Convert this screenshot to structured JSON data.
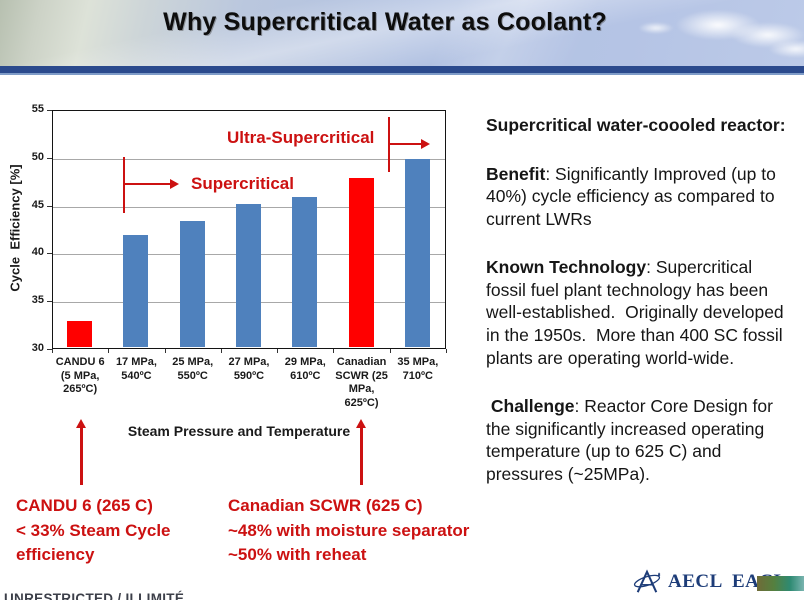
{
  "slide": {
    "title": "Why Supercritical Water as Coolant?"
  },
  "chart_data": {
    "type": "bar",
    "title": "",
    "xlabel": "Steam Pressure and Temperature",
    "ylabel": "Cycle  Efficiency [%]",
    "ylim": [
      30,
      55
    ],
    "yticks": [
      30,
      35,
      40,
      45,
      50,
      55
    ],
    "grid": "horizontal",
    "categories": [
      "CANDU 6\n(5 MPa,\n265ºC)",
      "17 MPa,\n540ºC",
      "25 MPa,\n550ºC",
      "27 MPa,\n590ºC",
      "29 MPa,\n610ºC",
      "Canadian\nSCWR (25\nMPa,\n625ºC)",
      "35 MPa,\n710ºC"
    ],
    "values": [
      33,
      42,
      43.5,
      45.3,
      46,
      48,
      50
    ],
    "bar_colors": [
      "red",
      "blue",
      "blue",
      "blue",
      "blue",
      "red",
      "blue"
    ],
    "annotations": {
      "supercritical": "Supercritical",
      "ultra_supercritical": "Ultra-Supercritical"
    }
  },
  "callouts": {
    "left": {
      "line1": "CANDU 6 (265 C)",
      "line2": "< 33% Steam Cycle",
      "line3": "efficiency"
    },
    "right": {
      "line1": "Canadian SCWR (625 C)",
      "line2": "~48% with moisture separator",
      "line3": "~50% with reheat"
    }
  },
  "info": {
    "heading": "Supercritical water-coooled reactor:",
    "paragraphs": [
      {
        "lead": "Benefit",
        "rest": ": Significantly Improved (up to 40%) cycle efficiency as compared to current LWRs"
      },
      {
        "lead": "Known Technology",
        "rest": ": Supercritical fossil fuel plant technology has been well-established.  Originally developed in the 1950s.  More than 400 SC fossil plants are operating world-wide."
      },
      {
        "lead": " Challenge",
        "rest": ": Reactor Core Design for the significantly increased operating temperature (up to 625 C) and pressures (~25MPa)."
      }
    ]
  },
  "footer": {
    "classification": "UNRESTRICTED / ILLIMITÉ",
    "logo_text": "AECL EACL"
  },
  "colors": {
    "bar_blue": "#4f81bd",
    "bar_red": "#ff0000",
    "annotation_red": "#cc1111",
    "navy_bar": "#2b4a8d",
    "logo_blue": "#1d3c78"
  }
}
